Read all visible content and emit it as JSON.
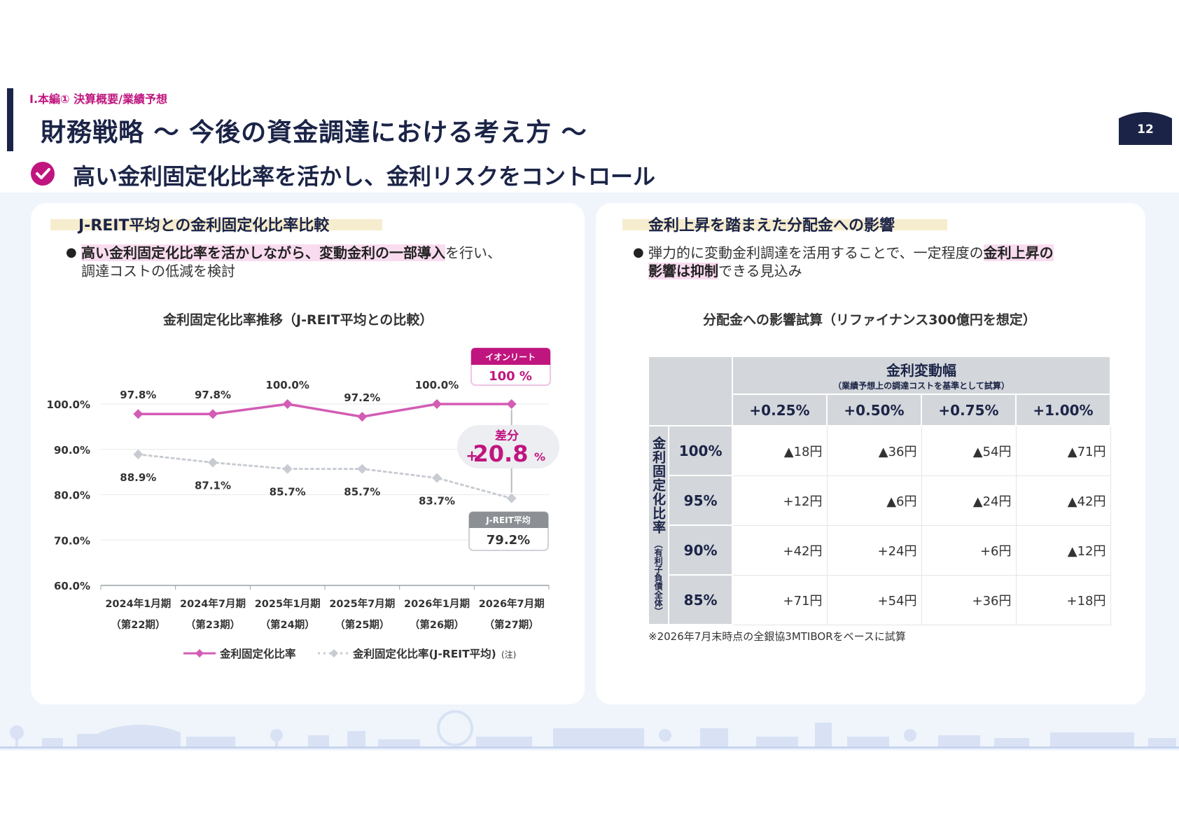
{
  "header": {
    "section": "Ⅰ.本編① 決算概要/業績予想",
    "title": "財務戦略 ～ 今後の資金調達における考え方 ～",
    "page_number": "12",
    "subtitle": "高い金利固定化比率を活かし、金利リスクをコントロール"
  },
  "left_panel": {
    "title": "J-REIT平均との金利固定化比率比較",
    "bullet_hl": "高い金利固定化比率を活かしながら、変動金利の一部導入",
    "bullet_rest": "を行い、",
    "bullet_line2": "調達コストの低減を検討",
    "chart_title": "金利固定化比率推移（J-REIT平均との比較）",
    "aeon_badge_label": "イオンリート",
    "aeon_badge_value": "100 %",
    "diff_label": "差分",
    "diff_plus": "+",
    "diff_value": "20.8",
    "diff_unit": "%",
    "jreit_badge_label": "J-REIT平均",
    "jreit_badge_value": "79.2%",
    "legend_note": "(注)"
  },
  "chart_data": {
    "type": "line",
    "categories": [
      "2024年1月期",
      "2024年7月期",
      "2025年1月期",
      "2025年7月期",
      "2026年1月期",
      "2026年7月期"
    ],
    "categories_sub": [
      "（第22期）",
      "（第23期）",
      "（第24期）",
      "（第25期）",
      "（第26期）",
      "（第27期）"
    ],
    "series": [
      {
        "name": "金利固定化比率",
        "values": [
          97.8,
          97.8,
          100.0,
          97.2,
          100.0,
          100.0
        ],
        "labels": [
          "97.8%",
          "97.8%",
          "100.0%",
          "97.2%",
          "100.0%",
          ""
        ],
        "color": "#d35cb4"
      },
      {
        "name": "金利固定化比率(J-REIT平均)",
        "values": [
          88.9,
          87.1,
          85.7,
          85.7,
          83.7,
          79.2
        ],
        "labels": [
          "88.9%",
          "87.1%",
          "85.7%",
          "85.7%",
          "83.7%",
          ""
        ],
        "color": "#c8ccd2"
      }
    ],
    "yticks": [
      "100.0%",
      "90.0%",
      "80.0%",
      "70.0%",
      "60.0%"
    ],
    "ylim": [
      60,
      100
    ],
    "grid": true,
    "legend": "bottom"
  },
  "right_panel": {
    "title": "金利上昇を踏まえた分配金への影響",
    "bullet_a": "弾力的に変動金利調達を活用することで、一定程度の",
    "bullet_hl1": "金利上昇の",
    "bullet_hl2": "影響は抑制",
    "bullet_b": "できる見込み",
    "table_title": "分配金への影響試算（リファイナンス300億円を想定）",
    "table": {
      "header_main": "金利変動幅",
      "header_sub": "（業績予想上の調達コストを基準として試算）",
      "row_axis_label": "金利固定化比率",
      "row_axis_sub": "（有利子負債全体）",
      "columns": [
        "+0.25%",
        "+0.50%",
        "+0.75%",
        "+1.00%"
      ],
      "rows": [
        {
          "label": "100%",
          "cells": [
            "▲18円",
            "▲36円",
            "▲54円",
            "▲71円"
          ]
        },
        {
          "label": "95%",
          "cells": [
            "+12円",
            "▲6円",
            "▲24円",
            "▲42円"
          ]
        },
        {
          "label": "90%",
          "cells": [
            "+42円",
            "+24円",
            "+6円",
            "▲12円"
          ]
        },
        {
          "label": "85%",
          "cells": [
            "+71円",
            "+54円",
            "+36円",
            "+18円"
          ]
        }
      ]
    },
    "note": "※2026年7月末時点の全銀協3MTIBORをベースに試算"
  },
  "colors": {
    "navy": "#1b2447",
    "magenta": "#c0157f",
    "pink_line": "#d35cb4",
    "gray_line": "#c8ccd2",
    "highlight": "#f9dcef",
    "title_band": "#f6ecce"
  }
}
